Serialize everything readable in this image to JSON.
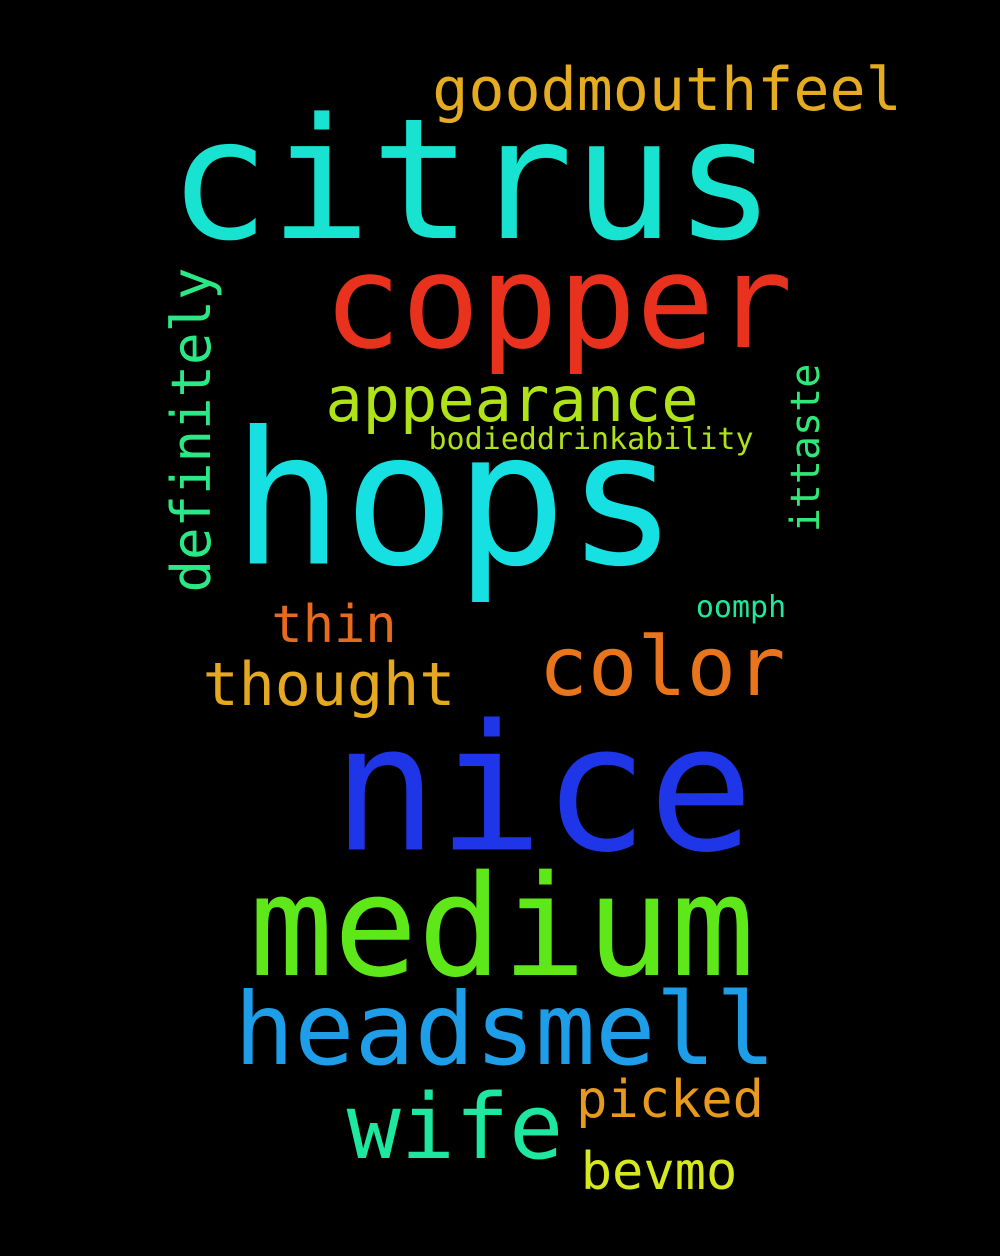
{
  "words": [
    {
      "text": "citrus",
      "color": "#17e3d0",
      "vertical": false
    },
    {
      "text": "copper",
      "color": "#e8321e",
      "vertical": false
    },
    {
      "text": "goodmouthfeel",
      "color": "#e5ab21",
      "vertical": false
    },
    {
      "text": "appearance",
      "color": "#b0e317",
      "vertical": false
    },
    {
      "text": "bodieddrinkability",
      "color": "#b0e317",
      "vertical": false
    },
    {
      "text": "hops",
      "color": "#17e0e3",
      "vertical": false
    },
    {
      "text": "definitely",
      "color": "#2be886",
      "vertical": true
    },
    {
      "text": "ittaste",
      "color": "#30e878",
      "vertical": true
    },
    {
      "text": "thin",
      "color": "#e86a1e",
      "vertical": false
    },
    {
      "text": "oomph",
      "color": "#20e89a",
      "vertical": false
    },
    {
      "text": "color",
      "color": "#e8741b",
      "vertical": false
    },
    {
      "text": "thought",
      "color": "#e5a821",
      "vertical": false
    },
    {
      "text": "nice",
      "color": "#1e35e8",
      "vertical": false
    },
    {
      "text": "medium",
      "color": "#5ee81a",
      "vertical": false
    },
    {
      "text": "headsmell",
      "color": "#1e9ee8",
      "vertical": false
    },
    {
      "text": "wife",
      "color": "#1ee8a0",
      "vertical": false
    },
    {
      "text": "picked",
      "color": "#e89a1e",
      "vertical": false
    },
    {
      "text": "bevmo",
      "color": "#d6e81e",
      "vertical": false
    }
  ]
}
